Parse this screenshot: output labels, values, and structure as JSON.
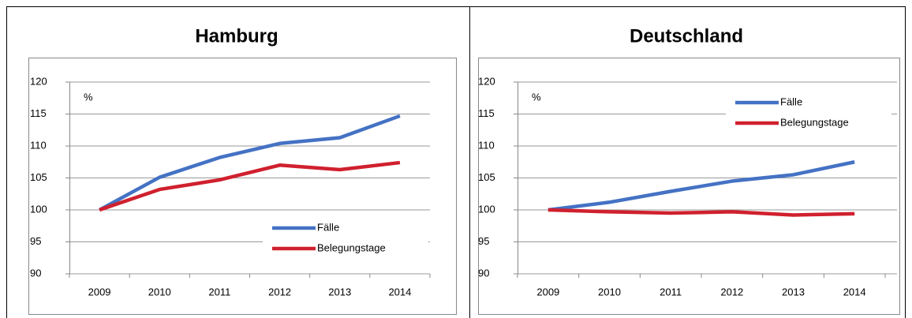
{
  "chart_data": [
    {
      "type": "line",
      "title": "Hamburg",
      "y_unit_label": "%",
      "categories": [
        "2009",
        "2010",
        "2011",
        "2012",
        "2013",
        "2014"
      ],
      "series": [
        {
          "name": "Fälle",
          "color": "#4472c4",
          "values": [
            100,
            105.1,
            108.2,
            110.4,
            111.3,
            114.7
          ]
        },
        {
          "name": "Belegungstage",
          "color": "#d0202e",
          "values": [
            100,
            103.2,
            104.7,
            107.0,
            106.3,
            107.4
          ]
        }
      ],
      "ylim": [
        90,
        120
      ],
      "yticks": [
        90,
        95,
        100,
        105,
        110,
        115,
        120
      ],
      "grid": true,
      "legend": "lower right"
    },
    {
      "type": "line",
      "title": "Deutschland",
      "y_unit_label": "%",
      "categories": [
        "2009",
        "2010",
        "2011",
        "2012",
        "2013",
        "2014"
      ],
      "series": [
        {
          "name": "Fälle",
          "color": "#4472c4",
          "values": [
            100,
            101.2,
            102.9,
            104.5,
            105.5,
            107.5
          ]
        },
        {
          "name": "Belegungstage",
          "color": "#d0202e",
          "values": [
            100,
            99.7,
            99.5,
            99.7,
            99.2,
            99.4
          ]
        }
      ],
      "ylim": [
        90,
        120
      ],
      "yticks": [
        90,
        95,
        100,
        105,
        110,
        115,
        120
      ],
      "grid": true,
      "legend": "upper right"
    }
  ]
}
